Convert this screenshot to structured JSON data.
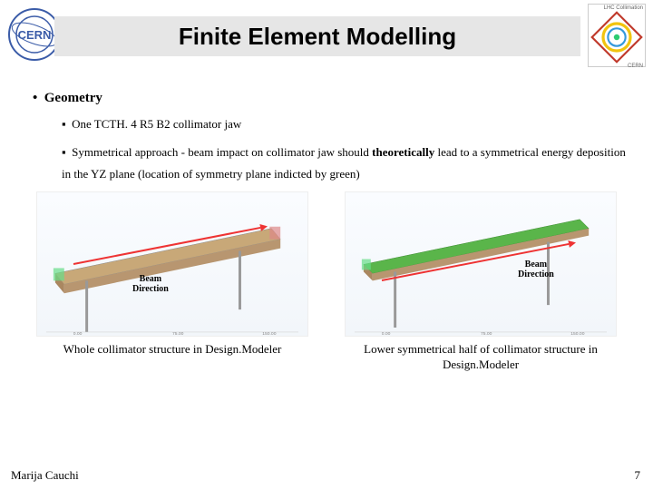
{
  "header": {
    "title": "Finite Element Modelling",
    "logo_left": "CERN",
    "logo_right_label": "LHC Collimation",
    "logo_right_sublabel": "CERN"
  },
  "content": {
    "section_title": "Geometry",
    "bullet_1": "One TCTH. 4 R5 B2 collimator jaw",
    "bullet_2_a": "Symmetrical approach - beam impact on collimator jaw should ",
    "bullet_2_b": "theoretically",
    "bullet_2_c": " lead to a symmetrical energy deposition in the YZ plane (location of symmetry plane indicted by green)"
  },
  "figures": {
    "left": {
      "beam_label": "Beam Direction",
      "caption": "Whole collimator structure in Design.Modeler",
      "arrow_color": "#e33333",
      "bg": "#f6f9fc"
    },
    "right": {
      "beam_label": "Beam Direction",
      "caption": "Lower symmetrical half of collimator structure in Design.Modeler",
      "arrow_color": "#e33333",
      "bg": "#f6f9fc"
    }
  },
  "footer": {
    "author": "Marija Cauchi",
    "page": "7"
  },
  "colors": {
    "title_bar_bg": "#e6e6e6",
    "beam_green": "#5ab54a",
    "arrow_red": "#e33333",
    "text": "#000000"
  }
}
